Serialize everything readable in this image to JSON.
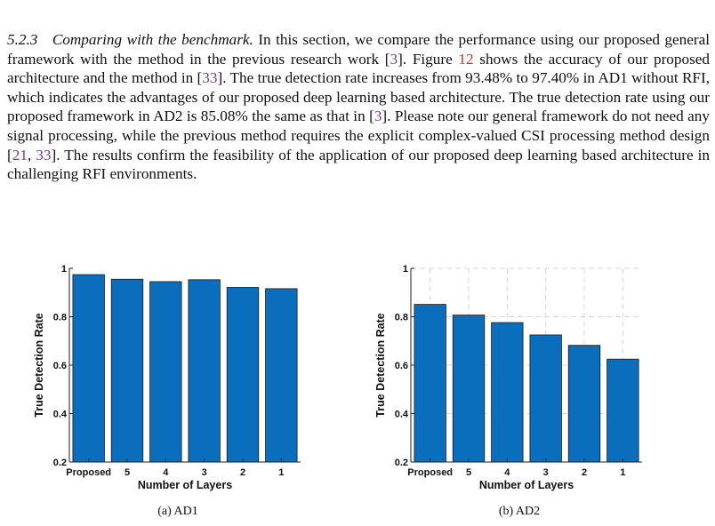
{
  "section": {
    "number": "5.2.3",
    "title": "Comparing with the benchmark.",
    "segments": [
      {
        "t": "In this section, we compare the performance using our proposed general framework with the method in the previous research work ["
      },
      {
        "t": "3",
        "kind": "cite"
      },
      {
        "t": "]. Figure "
      },
      {
        "t": "12",
        "kind": "fig"
      },
      {
        "t": " shows the accuracy of our proposed architecture and the method in ["
      },
      {
        "t": "33",
        "kind": "cite"
      },
      {
        "t": "]. The true detection rate increases from 93.48% to 97.40% in AD1 without RFI, which indicates the advantages of our proposed deep learning based architecture. The true detection rate using our proposed framework in AD2 is 85.08% the same as that in ["
      },
      {
        "t": "3",
        "kind": "cite"
      },
      {
        "t": "]. Please note our general framework do not need any signal processing, while the previous method requires the explicit complex-valued CSI processing method design ["
      },
      {
        "t": "21",
        "kind": "cite"
      },
      {
        "t": ", "
      },
      {
        "t": "33",
        "kind": "cite"
      },
      {
        "t": "]. The results confirm the feasibility of the application of our proposed deep learning based architecture in challenging RFI environments."
      }
    ]
  },
  "colors": {
    "bar": "#0a6ebd",
    "citation": "#7a3a8a",
    "figure_ref": "#d0342c",
    "grid": "#d8d8d8"
  },
  "chart_data": [
    {
      "type": "bar",
      "caption": "(a) AD1",
      "categories": [
        "Proposed",
        "5",
        "4",
        "3",
        "2",
        "1"
      ],
      "values": [
        0.974,
        0.955,
        0.945,
        0.953,
        0.921,
        0.916
      ],
      "xlabel": "Number of Layers",
      "ylabel": "True Detection Rate",
      "ylim": [
        0.2,
        1
      ],
      "yticks": [
        "0.2",
        "0.4",
        "0.6",
        "0.8",
        "1"
      ],
      "grid": false
    },
    {
      "type": "bar",
      "caption": "(b) AD2",
      "categories": [
        "Proposed",
        "5",
        "4",
        "3",
        "2",
        "1"
      ],
      "values": [
        0.851,
        0.807,
        0.776,
        0.725,
        0.682,
        0.625
      ],
      "xlabel": "Number of Layers",
      "ylabel": "True Detection Rate",
      "ylim": [
        0.2,
        1
      ],
      "yticks": [
        "0.2",
        "0.4",
        "0.6",
        "0.8",
        "1"
      ],
      "grid": true
    }
  ]
}
